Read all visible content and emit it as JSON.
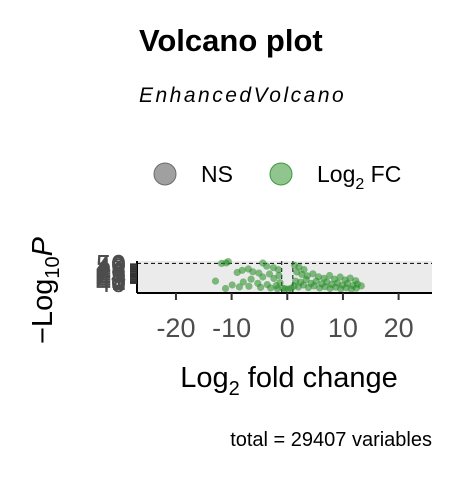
{
  "chart_data": {
    "type": "scatter",
    "title": "Volcano plot",
    "subtitle": "EnhancedVolcano",
    "xlabel": {
      "main": "Log",
      "sub": "2",
      "rest": " fold change"
    },
    "ylabel": {
      "prefix": "−Log",
      "sub": "10",
      "var": "P"
    },
    "caption": "total = 29407 variables",
    "legend": {
      "position": "top",
      "entries": [
        {
          "label": "NS",
          "color": "#808080"
        },
        {
          "label": "Log",
          "sub": "2",
          "rest": " FC",
          "color": "#228b22"
        }
      ]
    },
    "xlim": [
      -27,
      26
    ],
    "ylim": [
      34.6,
      51.8
    ],
    "x_ticks": [
      -20,
      -10,
      0,
      10,
      20
    ],
    "y_ticks": [
      40,
      41,
      42,
      43,
      44,
      45,
      46,
      47,
      48,
      49,
      50
    ],
    "y_tick_labels_visible": [
      "50",
      "40"
    ],
    "cutoff_lines": {
      "x": [
        -1,
        1
      ],
      "y": 50.5
    },
    "series": [
      {
        "name": "Log2 FC",
        "color": "#228b22",
        "points": [
          {
            "x": -10.6,
            "y": 51.5
          },
          {
            "x": -11.0,
            "y": 50.8
          },
          {
            "x": -11.8,
            "y": 50.5
          },
          {
            "x": -4.4,
            "y": 50.7
          },
          {
            "x": -3.7,
            "y": 49.0
          },
          {
            "x": -2.5,
            "y": 48.2
          },
          {
            "x": -1.6,
            "y": 47.1
          },
          {
            "x": -7.0,
            "y": 47.5
          },
          {
            "x": -8.1,
            "y": 46.8
          },
          {
            "x": -6.2,
            "y": 46.0
          },
          {
            "x": -5.1,
            "y": 45.3
          },
          {
            "x": -3.2,
            "y": 44.8
          },
          {
            "x": -9.0,
            "y": 45.6
          },
          {
            "x": -12.9,
            "y": 41.0
          },
          {
            "x": -7.9,
            "y": 40.5
          },
          {
            "x": -4.4,
            "y": 43.2
          },
          {
            "x": -2.4,
            "y": 42.4
          },
          {
            "x": -1.5,
            "y": 44.0
          },
          {
            "x": -6.5,
            "y": 42.0
          },
          {
            "x": -5.3,
            "y": 39.8
          },
          {
            "x": -3.6,
            "y": 39.1
          },
          {
            "x": -2.0,
            "y": 38.6
          },
          {
            "x": -1.3,
            "y": 40.2
          },
          {
            "x": -9.9,
            "y": 38.9
          },
          {
            "x": -8.6,
            "y": 37.9
          },
          {
            "x": -6.9,
            "y": 38.2
          },
          {
            "x": -4.8,
            "y": 37.6
          },
          {
            "x": -3.0,
            "y": 37.3
          },
          {
            "x": -1.8,
            "y": 36.9
          },
          {
            "x": -11.1,
            "y": 37.0
          },
          {
            "x": 1.3,
            "y": 49.5
          },
          {
            "x": 2.1,
            "y": 48.6
          },
          {
            "x": 3.0,
            "y": 47.2
          },
          {
            "x": 1.7,
            "y": 45.9
          },
          {
            "x": 2.6,
            "y": 44.6
          },
          {
            "x": 3.6,
            "y": 43.8
          },
          {
            "x": 4.6,
            "y": 44.9
          },
          {
            "x": 5.6,
            "y": 43.3
          },
          {
            "x": 6.6,
            "y": 42.5
          },
          {
            "x": 7.6,
            "y": 44.0
          },
          {
            "x": 8.5,
            "y": 42.0
          },
          {
            "x": 9.5,
            "y": 43.2
          },
          {
            "x": 10.4,
            "y": 41.6
          },
          {
            "x": 11.3,
            "y": 42.6
          },
          {
            "x": 12.3,
            "y": 41.2
          },
          {
            "x": 1.5,
            "y": 41.0
          },
          {
            "x": 2.4,
            "y": 40.4
          },
          {
            "x": 3.4,
            "y": 41.8
          },
          {
            "x": 4.3,
            "y": 39.8
          },
          {
            "x": 5.2,
            "y": 41.0
          },
          {
            "x": 6.2,
            "y": 39.5
          },
          {
            "x": 7.1,
            "y": 40.6
          },
          {
            "x": 8.0,
            "y": 39.2
          },
          {
            "x": 9.0,
            "y": 40.0
          },
          {
            "x": 9.9,
            "y": 38.8
          },
          {
            "x": 10.8,
            "y": 39.7
          },
          {
            "x": 11.8,
            "y": 38.6
          },
          {
            "x": 12.6,
            "y": 39.4
          },
          {
            "x": 13.3,
            "y": 38.4
          },
          {
            "x": 1.2,
            "y": 38.3
          },
          {
            "x": 2.0,
            "y": 37.8
          },
          {
            "x": 2.9,
            "y": 38.9
          },
          {
            "x": 3.8,
            "y": 37.5
          },
          {
            "x": 4.8,
            "y": 38.4
          },
          {
            "x": 5.8,
            "y": 37.3
          },
          {
            "x": 6.8,
            "y": 38.0
          },
          {
            "x": 7.7,
            "y": 37.0
          },
          {
            "x": 8.7,
            "y": 37.7
          },
          {
            "x": 9.6,
            "y": 36.8
          },
          {
            "x": 10.6,
            "y": 37.4
          },
          {
            "x": 11.5,
            "y": 36.7
          },
          {
            "x": 12.4,
            "y": 37.2
          },
          {
            "x": 0.2,
            "y": 36.7
          },
          {
            "x": -0.4,
            "y": 36.9
          },
          {
            "x": 0.7,
            "y": 37.1
          },
          {
            "x": -0.8,
            "y": 37.2
          }
        ]
      }
    ]
  }
}
